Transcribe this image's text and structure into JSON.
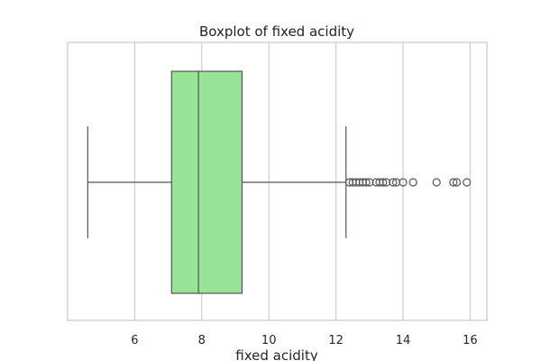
{
  "chart_data": {
    "type": "boxplot",
    "title": "Boxplot of fixed acidity",
    "xlabel": "fixed acidity",
    "ylabel": "",
    "xlim": [
      4.0,
      16.5
    ],
    "xticks": [
      6,
      8,
      10,
      12,
      14,
      16
    ],
    "grid": true,
    "box_color": "#98e396",
    "line_color": "#555555",
    "stats": {
      "whisker_low": 4.6,
      "q1": 7.1,
      "median": 7.9,
      "q3": 9.2,
      "whisker_high": 12.3
    },
    "outliers": [
      12.4,
      12.5,
      12.6,
      12.7,
      12.8,
      12.9,
      13.0,
      13.2,
      13.3,
      13.4,
      13.5,
      13.7,
      13.8,
      14.0,
      14.3,
      15.0,
      15.5,
      15.6,
      15.9
    ]
  }
}
